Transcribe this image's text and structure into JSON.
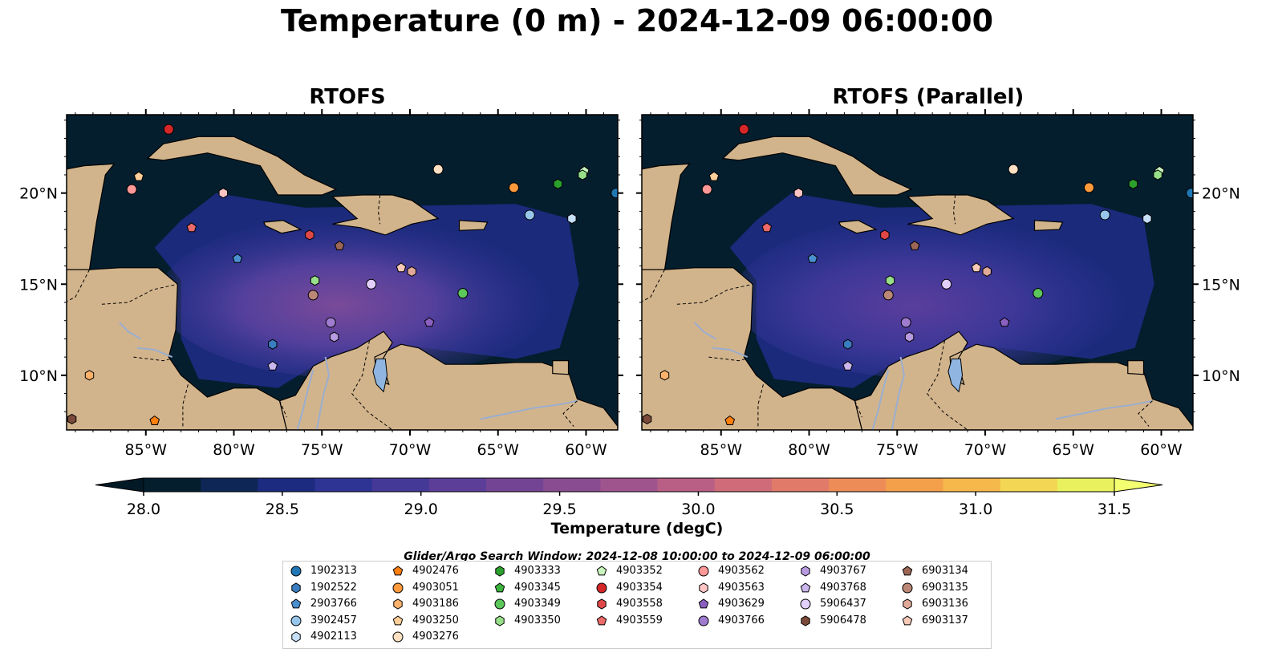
{
  "title": "Temperature (0 m) - 2024-12-09 06:00:00",
  "panels": [
    {
      "title": "RTOFS"
    },
    {
      "title": "RTOFS (Parallel)"
    }
  ],
  "axes": {
    "lon_ticks": [
      "85°W",
      "80°W",
      "75°W",
      "70°W",
      "65°W",
      "60°W"
    ],
    "lat_ticks": [
      "20°N",
      "15°N",
      "10°N"
    ],
    "lon_range": [
      -89.5,
      -58.2
    ],
    "lat_range": [
      7.0,
      24.3
    ]
  },
  "colorbar": {
    "label": "Temperature (degC)",
    "ticks": [
      "28.0",
      "28.5",
      "29.0",
      "29.5",
      "30.0",
      "30.5",
      "31.0",
      "31.5"
    ],
    "range": [
      28.0,
      31.5
    ],
    "extend": "both",
    "colors": [
      "#041e2e",
      "#0d2655",
      "#1c2b80",
      "#2e3494",
      "#453998",
      "#5c3e99",
      "#744494",
      "#8a4c91",
      "#a0548e",
      "#b95f85",
      "#d06c79",
      "#e17a69",
      "#ed8c57",
      "#f4a04a",
      "#f6b84b",
      "#f3d653",
      "#e9f15e"
    ],
    "under_color": "#031a26",
    "over_color": "#f3ff70"
  },
  "map_colors": {
    "land": "#d2b48c",
    "ocean_deep": "#041e2e",
    "lake": "#8fb5e0",
    "river": "#9aaed0"
  },
  "legend": {
    "title": "Glider/Argo Search Window: 2024-12-08 10:00:00 to 2024-12-09 06:00:00",
    "items": [
      {
        "id": "1902313",
        "marker": "circle",
        "color": "#1f77b4"
      },
      {
        "id": "1902522",
        "marker": "hexagon",
        "color": "#3a7dc0"
      },
      {
        "id": "2903766",
        "marker": "pentagon",
        "color": "#4a8fd0"
      },
      {
        "id": "3902457",
        "marker": "circle",
        "color": "#98c6ea"
      },
      {
        "id": "4902113",
        "marker": "hexagon",
        "color": "#c6e0f7"
      },
      {
        "id": "4902476",
        "marker": "pentagon",
        "color": "#ff7f0e"
      },
      {
        "id": "4903051",
        "marker": "circle",
        "color": "#ff9a3c"
      },
      {
        "id": "4903186",
        "marker": "hexagon",
        "color": "#ffb26b"
      },
      {
        "id": "4903250",
        "marker": "pentagon",
        "color": "#ffcf99"
      },
      {
        "id": "4903276",
        "marker": "circle",
        "color": "#ffe0c2"
      },
      {
        "id": "4903333",
        "marker": "hexagon",
        "color": "#2ca02c"
      },
      {
        "id": "4903345",
        "marker": "pentagon",
        "color": "#3cb43c"
      },
      {
        "id": "4903349",
        "marker": "circle",
        "color": "#5cc85c"
      },
      {
        "id": "4903350",
        "marker": "hexagon",
        "color": "#98df8a"
      },
      {
        "id": "4903352",
        "marker": "pentagon",
        "color": "#c8f5bd"
      },
      {
        "id": "4903354",
        "marker": "circle",
        "color": "#d62728"
      },
      {
        "id": "4903558",
        "marker": "hexagon",
        "color": "#e04848"
      },
      {
        "id": "4903559",
        "marker": "pentagon",
        "color": "#ec6a6a"
      },
      {
        "id": "4903562",
        "marker": "circle",
        "color": "#ff9896"
      },
      {
        "id": "4903563",
        "marker": "hexagon",
        "color": "#ffc4c4"
      },
      {
        "id": "4903629",
        "marker": "pentagon",
        "color": "#8a5fbf"
      },
      {
        "id": "4903766",
        "marker": "circle",
        "color": "#9f7cd0"
      },
      {
        "id": "4903767",
        "marker": "hexagon",
        "color": "#b79ae0"
      },
      {
        "id": "4903768",
        "marker": "pentagon",
        "color": "#cbb6ee"
      },
      {
        "id": "5906437",
        "marker": "circle",
        "color": "#e3d0fa"
      },
      {
        "id": "5906478",
        "marker": "hexagon",
        "color": "#7b4a3a"
      },
      {
        "id": "6903134",
        "marker": "pentagon",
        "color": "#9c6656"
      },
      {
        "id": "6903135",
        "marker": "circle",
        "color": "#bb8877"
      },
      {
        "id": "6903136",
        "marker": "hexagon",
        "color": "#e0a998"
      },
      {
        "id": "6903137",
        "marker": "pentagon",
        "color": "#f7cab8"
      }
    ]
  },
  "platforms": [
    {
      "id": "4903354",
      "lon": -83.7,
      "lat": 23.5
    },
    {
      "id": "4903250",
      "lon": -85.4,
      "lat": 20.9
    },
    {
      "id": "4903562",
      "lon": -85.8,
      "lat": 20.2
    },
    {
      "id": "4903563",
      "lon": -80.6,
      "lat": 20.0
    },
    {
      "id": "4903276",
      "lon": -68.4,
      "lat": 21.3
    },
    {
      "id": "4903051",
      "lon": -64.1,
      "lat": 20.3
    },
    {
      "id": "4903333",
      "lon": -61.6,
      "lat": 20.5
    },
    {
      "id": "4903352",
      "lon": -60.1,
      "lat": 21.2
    },
    {
      "id": "4903350",
      "lon": -60.2,
      "lat": 21.0
    },
    {
      "id": "1902313",
      "lon": -58.3,
      "lat": 20.0
    },
    {
      "id": "3902457",
      "lon": -63.2,
      "lat": 18.8
    },
    {
      "id": "4902113",
      "lon": -60.8,
      "lat": 18.6
    },
    {
      "id": "4903559",
      "lon": -82.4,
      "lat": 18.1
    },
    {
      "id": "4903558",
      "lon": -75.7,
      "lat": 17.7
    },
    {
      "id": "6903134",
      "lon": -74.0,
      "lat": 17.1
    },
    {
      "id": "2903766",
      "lon": -79.8,
      "lat": 16.4
    },
    {
      "id": "4903350",
      "lon": -75.4,
      "lat": 15.2
    },
    {
      "id": "6903135",
      "lon": -75.5,
      "lat": 14.4
    },
    {
      "id": "5906437",
      "lon": -72.2,
      "lat": 15.0
    },
    {
      "id": "6903137",
      "lon": -70.5,
      "lat": 15.9
    },
    {
      "id": "6903136",
      "lon": -69.9,
      "lat": 15.7
    },
    {
      "id": "4903349",
      "lon": -67.0,
      "lat": 14.5
    },
    {
      "id": "4903766",
      "lon": -74.5,
      "lat": 12.9
    },
    {
      "id": "4903767",
      "lon": -74.3,
      "lat": 12.1
    },
    {
      "id": "4903629",
      "lon": -68.9,
      "lat": 12.9
    },
    {
      "id": "1902522",
      "lon": -77.8,
      "lat": 11.7
    },
    {
      "id": "4903768",
      "lon": -77.8,
      "lat": 10.5
    },
    {
      "id": "4903186",
      "lon": -88.2,
      "lat": 10.0
    },
    {
      "id": "5906478",
      "lon": -89.2,
      "lat": 7.6
    },
    {
      "id": "4902476",
      "lon": -84.5,
      "lat": 7.5
    }
  ]
}
